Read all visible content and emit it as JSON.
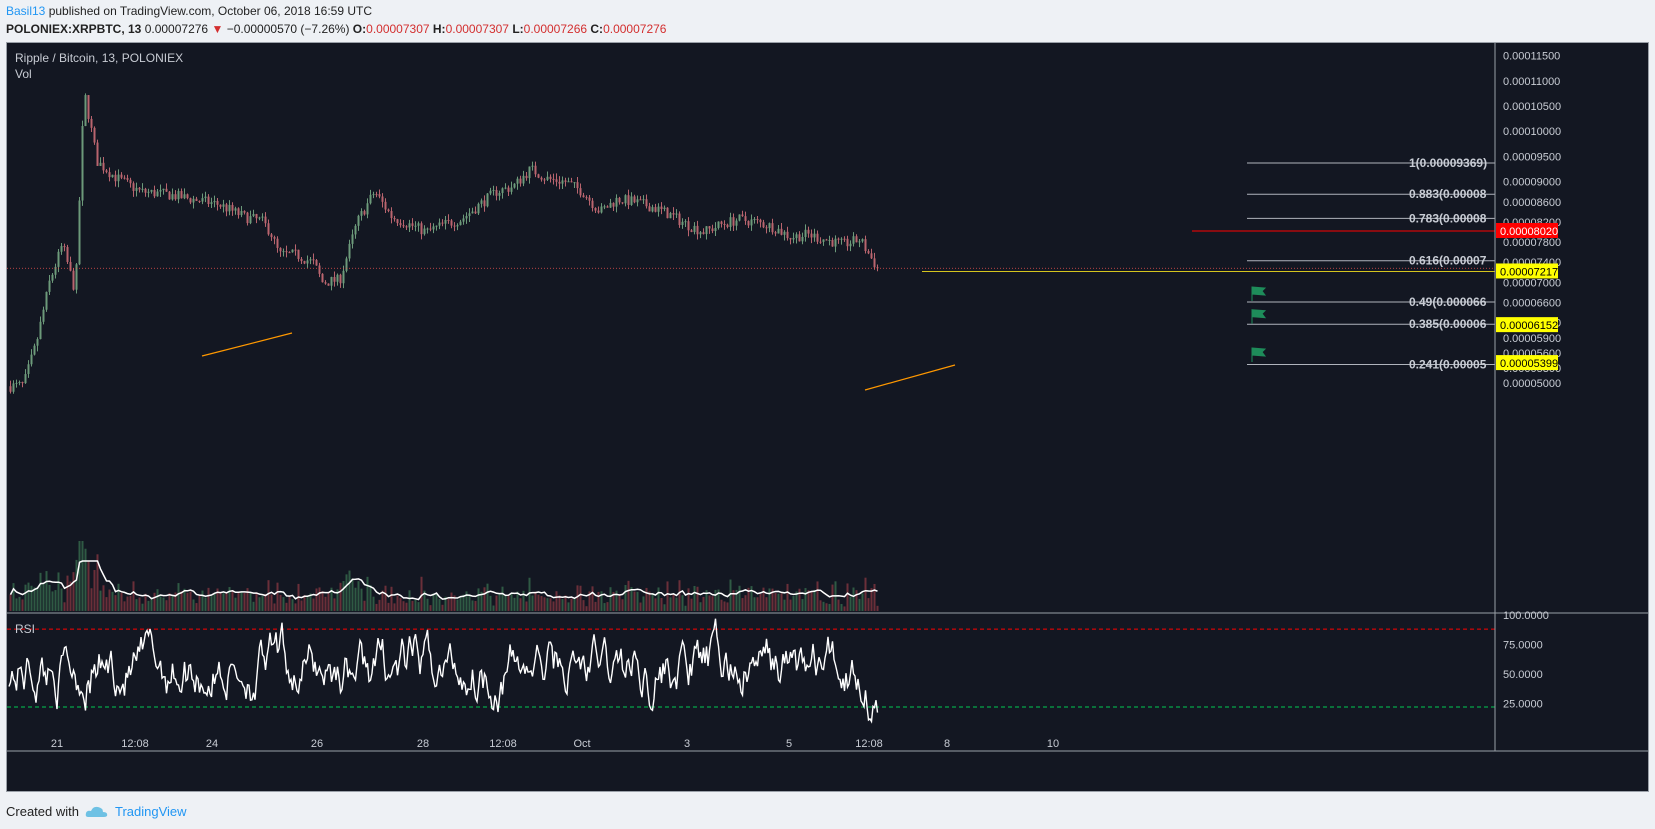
{
  "header": {
    "author": "Basil13",
    "published": "published on TradingView.com, October 06, 2018 16:59 UTC",
    "symbol": "POLONIEX:XRPBTC, 13",
    "last": "0.00007276",
    "change": "−0.00000570 (−7.26%)",
    "o_label": "O:",
    "o_value": "0.00007307",
    "h_label": "H:",
    "h_value": "0.00007307",
    "l_label": "L:",
    "l_value": "0.00007266",
    "c_label": "C:",
    "c_value": "0.00007276"
  },
  "footer": {
    "created": "Created with",
    "brand": "TradingView"
  },
  "chart_data": [
    {
      "type": "line",
      "title": "Ripple / Bitcoin, 13, POLONIEX",
      "legend": [
        "Vol"
      ],
      "colors": {
        "bg": "#131722",
        "candle_up": "#6c9a7a",
        "candle_down": "#b9646e",
        "text": "#c8ccd4",
        "fib_text": "#c8ccd4",
        "trend": "#ff9800",
        "support": "#d4c41e",
        "resistance": "#ff0000",
        "flag": "#26a69a",
        "ma": "#ffffff"
      },
      "ylim": [
        4.8e-06,
        0.0001175
      ],
      "y_ticks": [
        "0.00011500",
        "0.00011000",
        "0.00010500",
        "0.00010000",
        "0.00009500",
        "0.00009000",
        "0.00008600",
        "0.00008200",
        "0.00007800",
        "0.00007400",
        "0.00007000",
        "0.00006600",
        "0.00006200",
        "0.00005900",
        "0.00005600",
        "0.00005300",
        "0.00005000"
      ],
      "x_ticks": [
        "21",
        "12:08",
        "24",
        "26",
        "28",
        "12:08",
        "Oct",
        "3",
        "5",
        "12:08",
        "8",
        "10"
      ],
      "price_path": {
        "t": [
          0,
          0.015,
          0.03,
          0.045,
          0.06,
          0.075,
          0.085,
          0.1,
          0.12,
          0.15,
          0.18,
          0.21,
          0.24,
          0.27,
          0.29,
          0.3,
          0.31,
          0.33,
          0.35,
          0.36,
          0.38,
          0.4,
          0.42,
          0.44,
          0.46,
          0.48,
          0.5,
          0.52,
          0.56,
          0.58,
          0.6,
          0.62,
          0.64,
          0.66,
          0.68,
          0.7,
          0.72,
          0.74,
          0.76,
          0.78,
          0.8,
          0.82,
          0.84,
          0.86,
          0.88,
          0.9,
          0.92,
          0.94,
          0.96,
          0.98,
          1.0
        ],
        "price": [
          4.94e-05,
          4.96e-05,
          5.8e-05,
          7e-05,
          7.75e-05,
          6.8e-05,
          0.000108,
          9.4e-05,
          9.1e-05,
          8.8e-05,
          8.75e-05,
          8.65e-05,
          8.55e-05,
          8.3e-05,
          8.22e-05,
          8e-05,
          7.55e-05,
          7.55e-05,
          7.38e-05,
          7e-05,
          7.05e-05,
          8.2e-05,
          8.8e-05,
          8.3e-05,
          8.15e-05,
          8e-05,
          8.15e-05,
          8.25e-05,
          8.8e-05,
          8.9e-05,
          9.25e-05,
          9.05e-05,
          9e-05,
          8.8e-05,
          8.4e-05,
          8.65e-05,
          8.6e-05,
          8.5e-05,
          8.35e-05,
          8.15e-05,
          8e-05,
          8.15e-05,
          8.25e-05,
          8.2e-05,
          8.1e-05,
          7.9e-05,
          7.95e-05,
          7.85e-05,
          7.75e-05,
          7.85e-05,
          7.28e-05
        ]
      },
      "fib_levels": [
        {
          "label": "1(0.00009369)",
          "price": 9.369e-05
        },
        {
          "label": "0.883(0.00008",
          "price": 8.75e-05
        },
        {
          "label": "0.783(0.00008",
          "price": 8.27e-05
        },
        {
          "label": "0.616(0.00007",
          "price": 7.43e-05
        },
        {
          "label": "0.49(0.000066",
          "price": 6.61e-05
        },
        {
          "label": "0.385(0.00006",
          "price": 6.17e-05
        },
        {
          "label": "0.241(0.00005",
          "price": 5.37e-05
        }
      ],
      "price_labels": [
        {
          "text": "0.00008020",
          "price": 8.02e-05,
          "bg": "#ff0000",
          "fg": "#ffffff"
        },
        {
          "text": "0.00007217",
          "price": 7.217e-05,
          "bg": "#ffff00",
          "fg": "#000000"
        },
        {
          "text": "0.00006152",
          "price": 6.152e-05,
          "bg": "#ffff00",
          "fg": "#000000"
        },
        {
          "text": "0.00005399",
          "price": 5.399e-05,
          "bg": "#ffff00",
          "fg": "#000000"
        }
      ],
      "horizontal_lines": [
        {
          "name": "support-line",
          "price": 7.217e-05,
          "color": "#d4c41e"
        },
        {
          "name": "resistance-line",
          "price": 8.02e-05,
          "color": "#ff0000"
        }
      ]
    },
    {
      "type": "line",
      "title": "RSI",
      "ylim": [
        0,
        100
      ],
      "y_ticks": [
        "100.0000",
        "75.0000",
        "50.0000",
        "25.0000"
      ],
      "levels": {
        "upper": 88,
        "lower": 22
      },
      "colors": {
        "line": "#ffffff",
        "upper": "#ff0000",
        "lower": "#00c853"
      }
    }
  ]
}
